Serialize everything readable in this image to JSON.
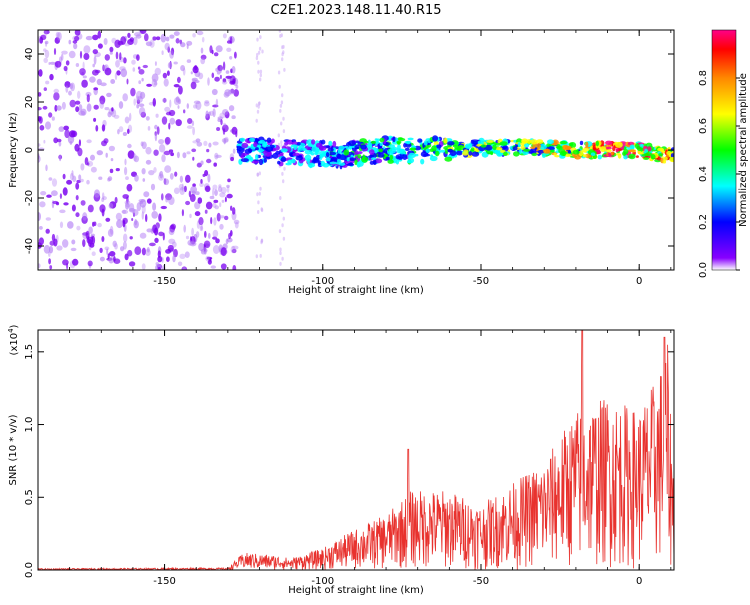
{
  "title": "C2E1.2023.148.11.40.R15",
  "chart_data": [
    {
      "type": "heatmap",
      "xlabel": "Height of straight line (km)",
      "ylabel": "Frequency (Hz)",
      "xlim": [
        -190,
        11
      ],
      "ylim": [
        -50,
        50
      ],
      "xticks": [
        -150,
        -100,
        -50,
        0
      ],
      "yticks": [
        -40,
        -20,
        0,
        20,
        40
      ],
      "colorbar": {
        "label": "Normalized spectral amplitude",
        "range": [
          0,
          1
        ],
        "ticks": [
          0.0,
          0.2,
          0.4,
          0.6,
          0.8
        ],
        "colors": [
          "#ffffff",
          "#8800ff",
          "#0000ff",
          "#00ffff",
          "#00ff00",
          "#ffff00",
          "#ff8800",
          "#ff0000",
          "#ff0088"
        ]
      },
      "noise_region_x": [
        -190,
        -127
      ],
      "signal_band": [
        {
          "x": -127,
          "y": 0,
          "amp": 0.35
        },
        {
          "x": -110,
          "y": -1,
          "amp": 0.3
        },
        {
          "x": -95,
          "y": -2,
          "amp": 0.35
        },
        {
          "x": -80,
          "y": 0,
          "amp": 0.4
        },
        {
          "x": -65,
          "y": 0,
          "amp": 0.45
        },
        {
          "x": -50,
          "y": 1,
          "amp": 0.5
        },
        {
          "x": -35,
          "y": 1,
          "amp": 0.55
        },
        {
          "x": -20,
          "y": 0,
          "amp": 0.6
        },
        {
          "x": -10,
          "y": 0,
          "amp": 0.85
        },
        {
          "x": 0,
          "y": 0,
          "amp": 0.8
        },
        {
          "x": 11,
          "y": -3,
          "amp": 0.6
        }
      ]
    },
    {
      "type": "line",
      "ylabel": "SNR (10 * v/v)",
      "xlabel": "Height of straight line (km)",
      "yscale_label": "(x10",
      "yscale_exp": "4",
      "yscale_close": ")",
      "xlim": [
        -190,
        11
      ],
      "ylim": [
        0,
        1.65
      ],
      "xticks": [
        -150,
        -100,
        -50,
        0
      ],
      "yticks": [
        0.0,
        0.5,
        1.0,
        1.5
      ],
      "line_color": "#e8322e",
      "envelope": {
        "x": [
          -190,
          -130,
          -125,
          -115,
          -110,
          -100,
          -90,
          -80,
          -72,
          -60,
          -50,
          -40,
          -30,
          -20,
          -10,
          0,
          6,
          9,
          11
        ],
        "y": [
          0.01,
          0.015,
          0.12,
          0.1,
          0.08,
          0.15,
          0.28,
          0.38,
          0.55,
          0.55,
          0.45,
          0.6,
          0.75,
          1.1,
          1.2,
          1.1,
          1.35,
          1.55,
          0.6
        ]
      },
      "peaks": [
        {
          "x": -73,
          "y": 0.83
        },
        {
          "x": -18,
          "y": 1.65
        },
        {
          "x": 8,
          "y": 1.6
        }
      ]
    }
  ]
}
